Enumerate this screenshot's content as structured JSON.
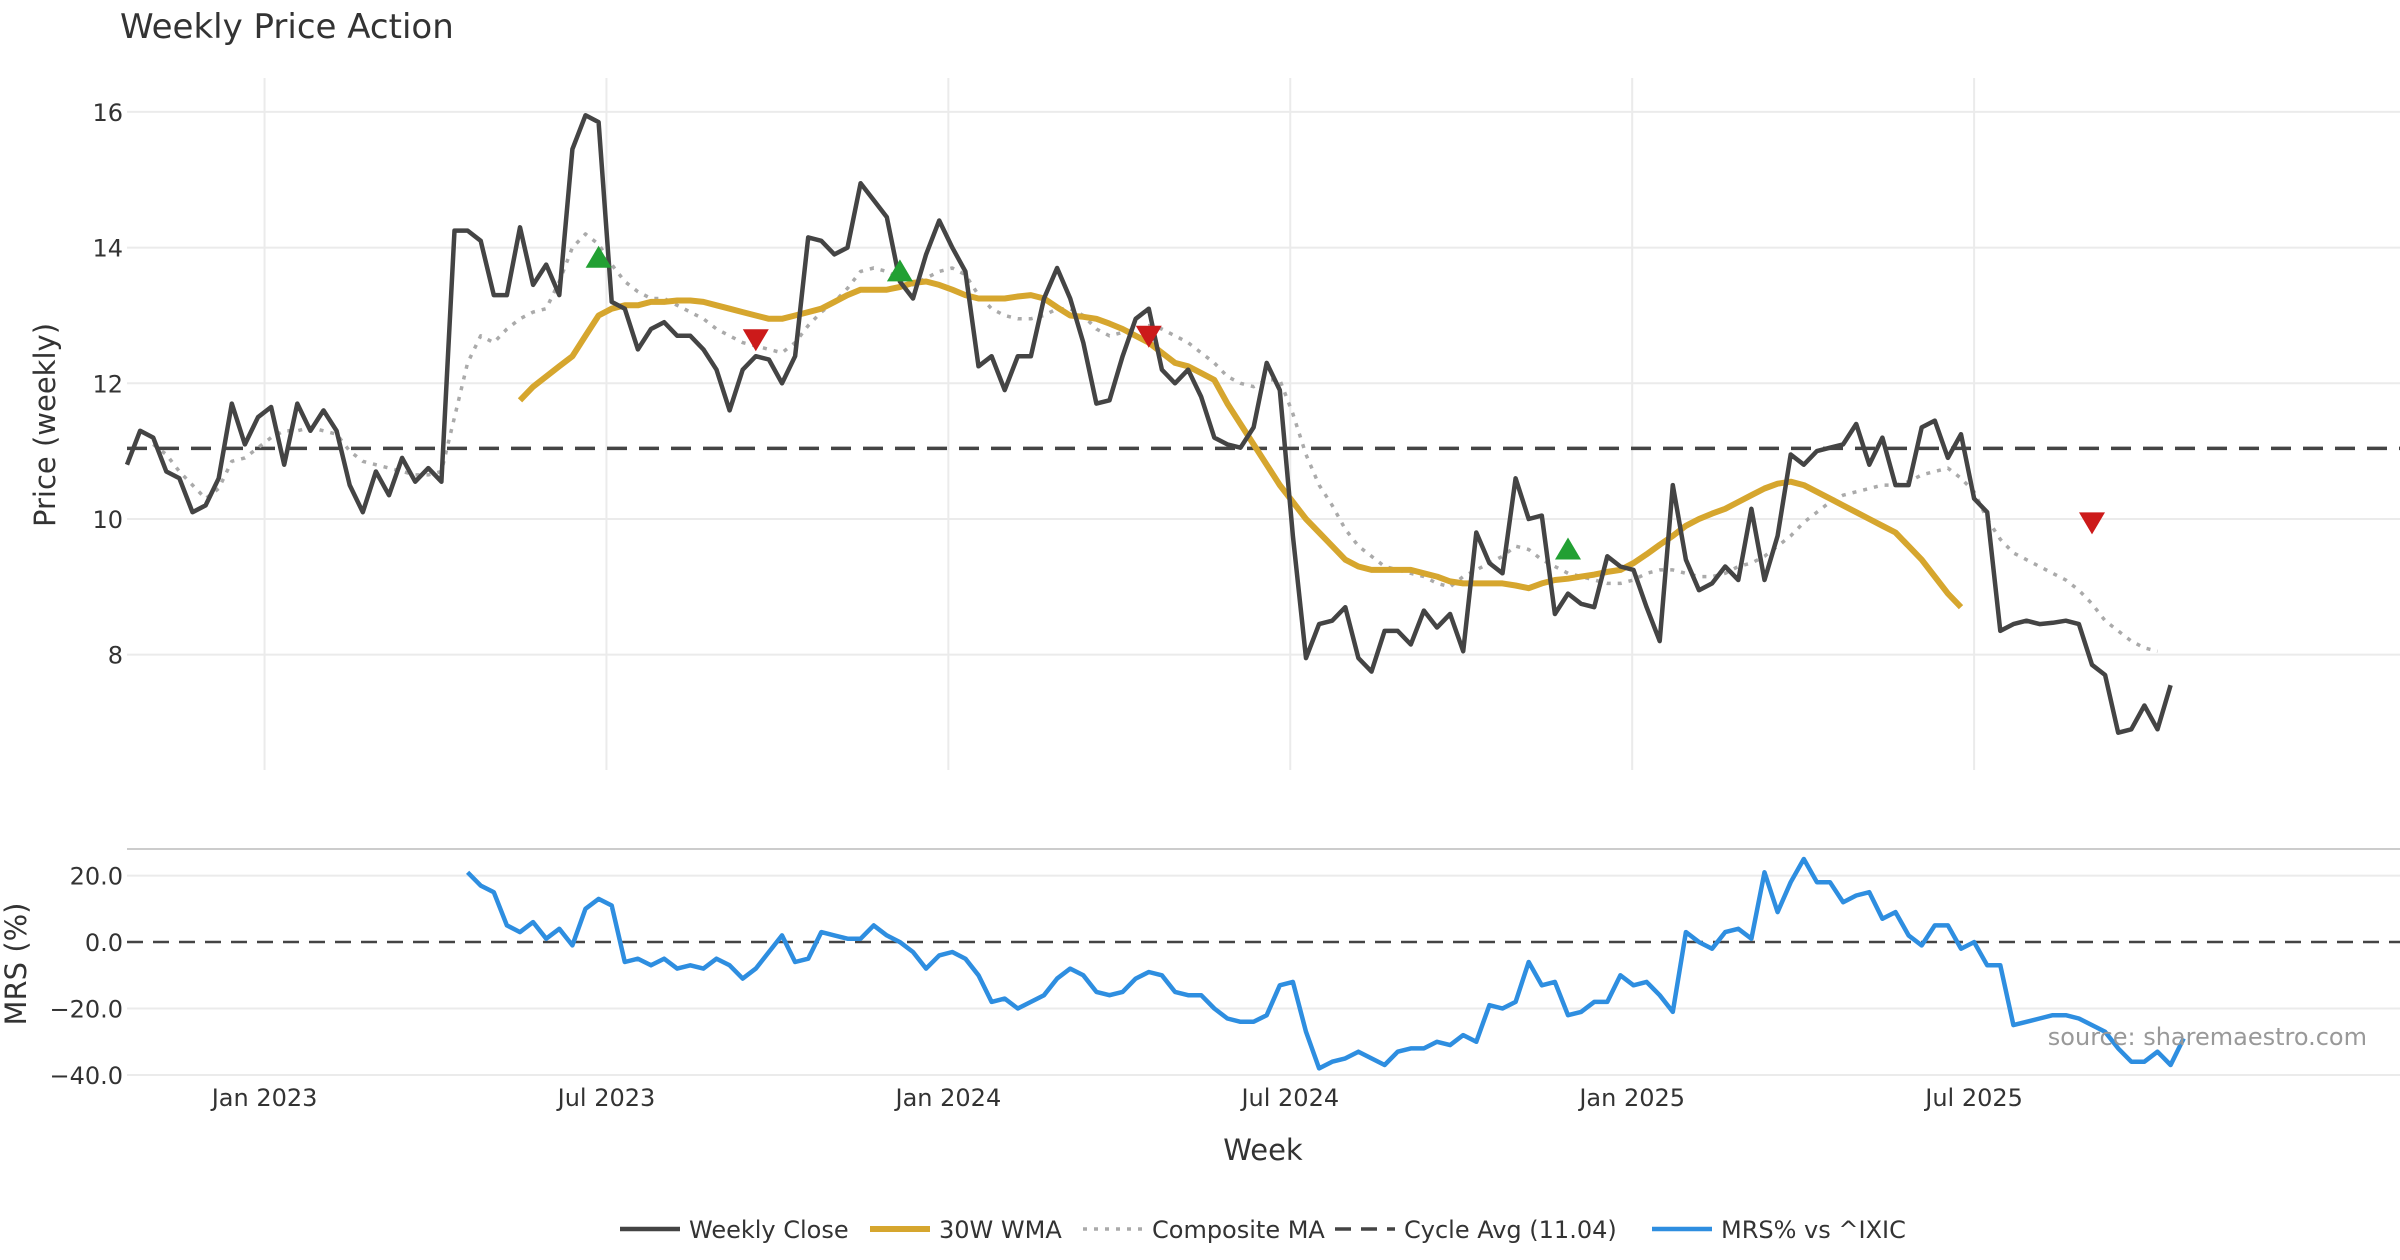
{
  "chart_data": {
    "type": "line",
    "title": "Weekly Price Action",
    "xlabel": "Week",
    "x_tick_labels": [
      "Jan 2023",
      "Jul 2023",
      "Jan 2024",
      "Jul 2024",
      "Jan 2025",
      "Jul 2025"
    ],
    "price_panel": {
      "ylabel": "Price (weekly)",
      "ylim": [
        6.3,
        16.5
      ],
      "y_ticks": [
        8,
        10,
        12,
        14,
        16
      ],
      "grid": true,
      "cycle_avg": 11.04
    },
    "mrs_panel": {
      "ylabel": "MRS (%)",
      "ylim": [
        -40,
        28
      ],
      "y_ticks": [
        20,
        0,
        -20,
        -40
      ],
      "y_tick_labels": [
        "20.0",
        "0.0",
        "−20.0",
        "−40.0"
      ],
      "zero_line": 0
    },
    "weeks": 170,
    "series": [
      {
        "name": "Weekly Close",
        "color": "#444444",
        "values": [
          10.8,
          11.3,
          11.2,
          10.7,
          10.6,
          10.1,
          10.2,
          10.6,
          11.7,
          11.1,
          11.5,
          11.65,
          10.8,
          11.7,
          11.3,
          11.6,
          11.3,
          10.5,
          10.1,
          10.7,
          10.35,
          10.9,
          10.55,
          10.75,
          10.55,
          14.25,
          14.25,
          14.1,
          13.3,
          13.3,
          14.3,
          13.45,
          13.75,
          13.3,
          15.45,
          15.95,
          15.85,
          13.2,
          13.1,
          12.5,
          12.8,
          12.9,
          12.7,
          12.7,
          12.5,
          12.2,
          11.6,
          12.2,
          12.4,
          12.35,
          12.0,
          12.4,
          14.15,
          14.1,
          13.9,
          14.0,
          14.95,
          14.7,
          14.45,
          13.5,
          13.25,
          13.9,
          14.4,
          14.0,
          13.65,
          12.25,
          12.4,
          11.9,
          12.4,
          12.4,
          13.25,
          13.7,
          13.25,
          12.6,
          11.7,
          11.75,
          12.4,
          12.95,
          13.1,
          12.2,
          12.0,
          12.2,
          11.8,
          11.2,
          11.1,
          11.05,
          11.35,
          12.3,
          11.9,
          9.75,
          7.95,
          8.45,
          8.5,
          8.7,
          7.95,
          7.75,
          8.35,
          8.35,
          8.15,
          8.65,
          8.4,
          8.6,
          8.05,
          9.8,
          9.35,
          9.2,
          10.6,
          10.0,
          10.05,
          8.6,
          8.9,
          8.75,
          8.7,
          9.45,
          9.3,
          9.25,
          8.7,
          8.2,
          10.5,
          9.4,
          8.95,
          9.05,
          9.3,
          9.1,
          10.15,
          9.1,
          9.75,
          10.95,
          10.8,
          11.0,
          11.05,
          11.1,
          11.4,
          10.8,
          11.2,
          10.5,
          10.5,
          11.35,
          11.45,
          10.9,
          11.25,
          10.3,
          10.1,
          8.35,
          8.45,
          8.5,
          8.45,
          8.47,
          8.5,
          8.45,
          7.85,
          7.7,
          6.85,
          6.9,
          7.25,
          6.9,
          7.55
        ]
      },
      {
        "name": "30W WMA",
        "color": "#d6a62e",
        "start_week": 30,
        "values": [
          11.75,
          11.95,
          12.1,
          12.25,
          12.4,
          12.7,
          13.0,
          13.1,
          13.15,
          13.15,
          13.2,
          13.2,
          13.22,
          13.22,
          13.2,
          13.15,
          13.1,
          13.05,
          13.0,
          12.95,
          12.95,
          13.0,
          13.05,
          13.1,
          13.2,
          13.3,
          13.38,
          13.38,
          13.38,
          13.42,
          13.48,
          13.5,
          13.45,
          13.38,
          13.3,
          13.25,
          13.25,
          13.25,
          13.28,
          13.3,
          13.25,
          13.12,
          13.0,
          12.98,
          12.95,
          12.88,
          12.8,
          12.7,
          12.6,
          12.45,
          12.3,
          12.25,
          12.15,
          12.05,
          11.7,
          11.4,
          11.1,
          10.8,
          10.5,
          10.25,
          10.0,
          9.8,
          9.6,
          9.4,
          9.3,
          9.25,
          9.25,
          9.25,
          9.25,
          9.2,
          9.15,
          9.08,
          9.05,
          9.05,
          9.05,
          9.05,
          9.02,
          8.98,
          9.05,
          9.1,
          9.12,
          9.15,
          9.18,
          9.22,
          9.25,
          9.35,
          9.48,
          9.62,
          9.75,
          9.9,
          10.0,
          10.08,
          10.15,
          10.25,
          10.35,
          10.45,
          10.52,
          10.55,
          10.5,
          10.4,
          10.3,
          10.2,
          10.1,
          10.0,
          9.9,
          9.8,
          9.6,
          9.4,
          9.15,
          8.9,
          8.7
        ]
      },
      {
        "name": "Composite MA",
        "color": "#aaaaaa",
        "values": [
          null,
          null,
          11.1,
          10.95,
          10.7,
          10.5,
          10.3,
          10.45,
          10.85,
          10.9,
          11.05,
          11.2,
          11.3,
          11.3,
          11.35,
          11.3,
          11.25,
          11.0,
          10.85,
          10.8,
          10.75,
          10.7,
          10.65,
          10.65,
          10.7,
          11.5,
          12.3,
          12.7,
          12.6,
          12.8,
          12.95,
          13.05,
          13.1,
          13.5,
          14.0,
          14.2,
          14.05,
          13.75,
          13.5,
          13.35,
          13.25,
          13.25,
          13.15,
          13.05,
          12.95,
          12.8,
          12.7,
          12.6,
          12.55,
          12.5,
          12.45,
          12.6,
          12.85,
          13.05,
          13.2,
          13.4,
          13.65,
          13.7,
          13.65,
          13.55,
          13.45,
          13.55,
          13.65,
          13.7,
          13.6,
          13.3,
          13.1,
          13.0,
          12.95,
          12.95,
          13.0,
          13.1,
          13.1,
          13.0,
          12.8,
          12.7,
          12.75,
          12.8,
          12.85,
          12.8,
          12.7,
          12.6,
          12.45,
          12.3,
          12.1,
          12.0,
          11.95,
          12.05,
          12.05,
          11.55,
          10.95,
          10.5,
          10.2,
          9.85,
          9.6,
          9.45,
          9.3,
          9.25,
          9.2,
          9.15,
          9.05,
          9.0,
          9.15,
          9.25,
          9.35,
          9.45,
          9.6,
          9.55,
          9.4,
          9.3,
          9.2,
          9.15,
          9.1,
          9.05,
          9.05,
          9.1,
          9.2,
          9.25,
          9.25,
          9.2,
          9.15,
          9.15,
          9.2,
          9.3,
          9.35,
          9.45,
          9.6,
          9.75,
          9.95,
          10.1,
          10.25,
          10.35,
          10.4,
          10.45,
          10.5,
          10.5,
          10.55,
          10.65,
          10.7,
          10.75,
          10.6,
          10.4,
          10.0,
          9.7,
          9.5,
          9.4,
          9.3,
          9.2,
          9.1,
          8.95,
          8.75,
          8.5,
          8.35,
          8.2,
          8.1,
          8.05
        ]
      },
      {
        "name": "MRS% vs ^IXIC",
        "color": "#2e8ee0",
        "start_week": 26,
        "values": [
          21,
          17,
          15,
          5,
          3,
          6,
          1,
          4,
          -1,
          10,
          13,
          11,
          -6,
          -5,
          -7,
          -5,
          -8,
          -7,
          -8,
          -5,
          -7,
          -11,
          -8,
          -3,
          2,
          -6,
          -5,
          3,
          2,
          1,
          1,
          5,
          2,
          0,
          -3,
          -8,
          -4,
          -3,
          -5,
          -10,
          -18,
          -17,
          -20,
          -18,
          -16,
          -11,
          -8,
          -10,
          -15,
          -16,
          -15,
          -11,
          -9,
          -10,
          -15,
          -16,
          -16,
          -20,
          -23,
          -24,
          -24,
          -22,
          -13,
          -12,
          -27,
          -38,
          -36,
          -35,
          -33,
          -35,
          -37,
          -33,
          -32,
          -32,
          -30,
          -31,
          -28,
          -30,
          -19,
          -20,
          -18,
          -6,
          -13,
          -12,
          -22,
          -21,
          -18,
          -18,
          -10,
          -13,
          -12,
          -16,
          -21,
          3,
          0,
          -2,
          3,
          4,
          1,
          21,
          9,
          18,
          25,
          18,
          18,
          12,
          14,
          15,
          7,
          9,
          2,
          -1,
          5,
          5,
          -2,
          0,
          -7,
          -7,
          -25,
          -24,
          -23,
          -22,
          -22,
          -23,
          -25,
          -27,
          -32,
          -36,
          -36,
          -33,
          -37,
          -29
        ]
      },
      {
        "name": "Cycle Avg (11.04)",
        "color": "#444444",
        "value": 11.04
      }
    ],
    "buy_signals": [
      {
        "week": 36,
        "price": 13.85
      },
      {
        "week": 59,
        "price": 13.65
      },
      {
        "week": 110,
        "price": 9.55
      }
    ],
    "sell_signals": [
      {
        "week": 48,
        "price": 12.65
      },
      {
        "week": 78,
        "price": 12.7
      },
      {
        "week": 150,
        "price": 9.95
      }
    ],
    "marker_colors": {
      "buy": "#22a033",
      "sell": "#cc1a1a"
    },
    "legend": {
      "position": "bottom-center",
      "items": [
        "Weekly Close",
        "30W WMA",
        "Composite MA",
        "Cycle Avg (11.04)",
        "MRS% vs ^IXIC"
      ]
    },
    "source_note": "source: sharemaestro.com"
  }
}
